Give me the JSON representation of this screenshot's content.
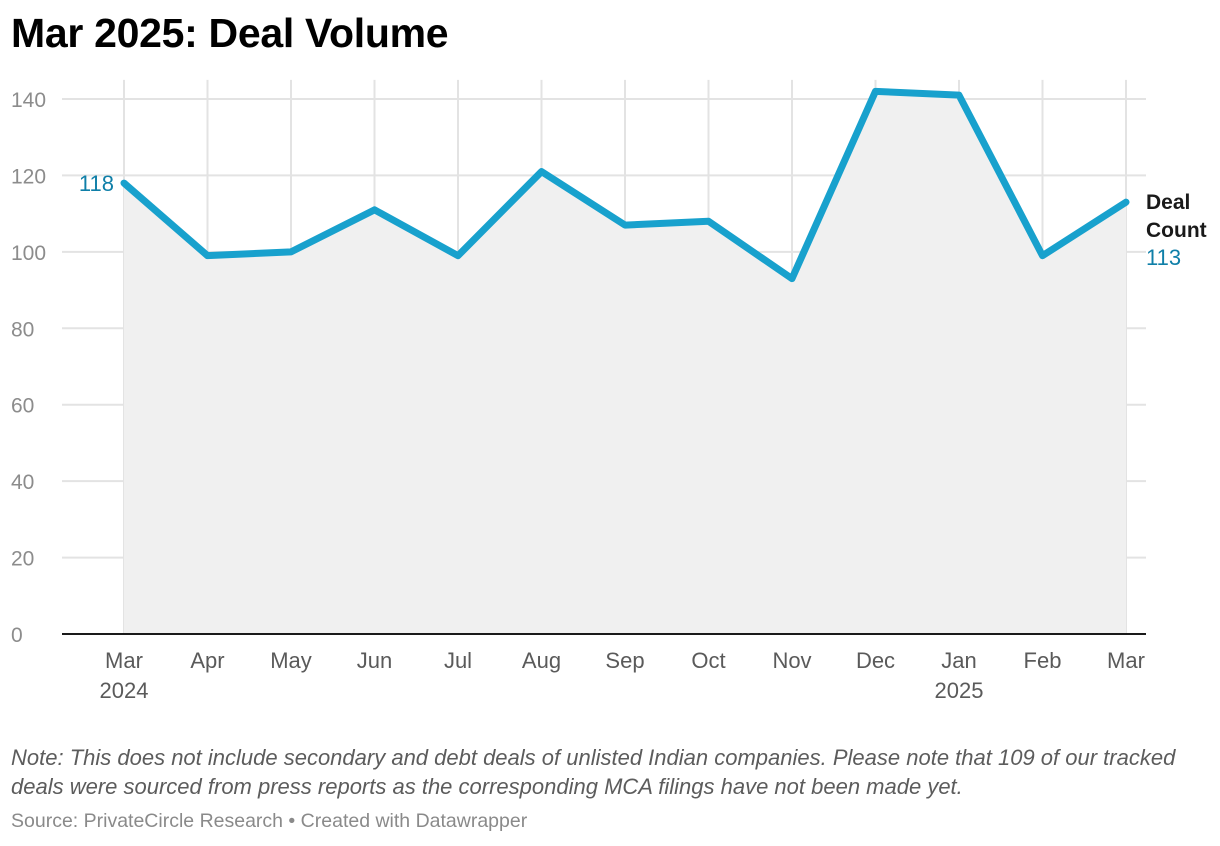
{
  "title": "Mar 2025: Deal Volume",
  "note": "Note: This does not include secondary and debt deals of unlisted Indian companies. Please note that 109 of our tracked deals were sourced from press reports as the corresponding MCA filings have not been made yet.",
  "source": "Source: PrivateCircle Research • Created with Datawrapper",
  "chart_data": {
    "type": "area",
    "title": "Mar 2025: Deal Volume",
    "x": [
      "Mar 2024",
      "Apr 2024",
      "May 2024",
      "Jun 2024",
      "Jul 2024",
      "Aug 2024",
      "Sep 2024",
      "Oct 2024",
      "Nov 2024",
      "Dec 2024",
      "Jan 2025",
      "Feb 2025",
      "Mar 2025"
    ],
    "x_tick_labels": [
      {
        "month": "Mar",
        "year": "2024"
      },
      {
        "month": "Apr",
        "year": ""
      },
      {
        "month": "May",
        "year": ""
      },
      {
        "month": "Jun",
        "year": ""
      },
      {
        "month": "Jul",
        "year": ""
      },
      {
        "month": "Aug",
        "year": ""
      },
      {
        "month": "Sep",
        "year": ""
      },
      {
        "month": "Oct",
        "year": ""
      },
      {
        "month": "Nov",
        "year": ""
      },
      {
        "month": "Dec",
        "year": ""
      },
      {
        "month": "Jan",
        "year": "2025"
      },
      {
        "month": "Feb",
        "year": ""
      },
      {
        "month": "Mar",
        "year": ""
      }
    ],
    "series": [
      {
        "name": "Deal Count",
        "values": [
          118,
          99,
          100,
          111,
          99,
          121,
          107,
          108,
          93,
          142,
          141,
          99,
          113
        ],
        "color": "#18a1cd",
        "fill": "#f0f0f0"
      }
    ],
    "ylim": [
      0,
      145
    ],
    "yticks": [
      0,
      20,
      40,
      60,
      80,
      100,
      120,
      140
    ],
    "grid": true,
    "xlabel": "",
    "ylabel": "",
    "annotations": {
      "first_value": "118",
      "last_label": "Deal Count",
      "last_value": "113",
      "value_color": "#0f7fa8",
      "label_color": "#1a1a1a"
    }
  }
}
